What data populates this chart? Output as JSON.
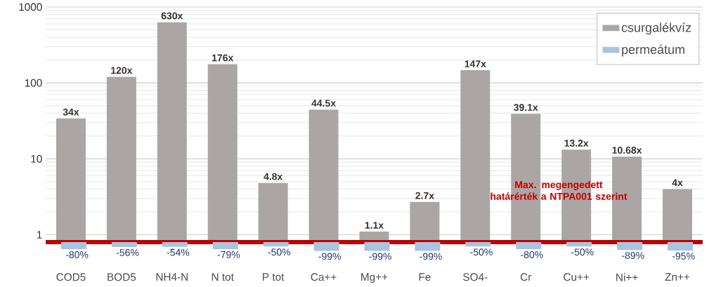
{
  "chart_data": {
    "type": "bar",
    "categories": [
      "COD5",
      "BOD5",
      "NH4-N",
      "N tot",
      "P tot",
      "Ca++",
      "Mg++",
      "Fe",
      "SO4-",
      "Cr",
      "Cu++",
      "Ni++",
      "Zn++"
    ],
    "series": [
      {
        "name": "csurgalékvíz",
        "color": "#aba6a5",
        "values": [
          34,
          120,
          630,
          176,
          4.8,
          44.5,
          1.1,
          2.7,
          147,
          39.1,
          13.2,
          10.68,
          4
        ],
        "value_labels": [
          "34x",
          "120x",
          "630x",
          "176x",
          "4.8x",
          "44.5x",
          "1.1x",
          "2.7x",
          "147x",
          "39.1x",
          "13.2x",
          "10.68x",
          "4x"
        ]
      },
      {
        "name": "permeátum",
        "color": "#a9c4e0",
        "axis": "y2",
        "values": [
          -80,
          -56,
          -54,
          -79,
          -50,
          -99,
          -99,
          -99,
          -50,
          -80,
          -50,
          -89,
          -95
        ],
        "value_labels": [
          "-80%",
          "-56%",
          "-54%",
          "-79%",
          "-50%",
          "-99%",
          "-99%",
          "-99%",
          "-50%",
          "-80%",
          "-50%",
          "-89%",
          "-95%"
        ]
      }
    ],
    "log": "y",
    "ylim": [
      0.8,
      1000
    ],
    "yticks": [
      1,
      10,
      100,
      1000
    ],
    "grid": "y",
    "legend": "top right",
    "ref_lines": [
      {
        "axis": "y",
        "value": 0.8,
        "label": "Max. megengedett határérték a NTPA001 szerint",
        "color": "#c00000"
      }
    ]
  }
}
